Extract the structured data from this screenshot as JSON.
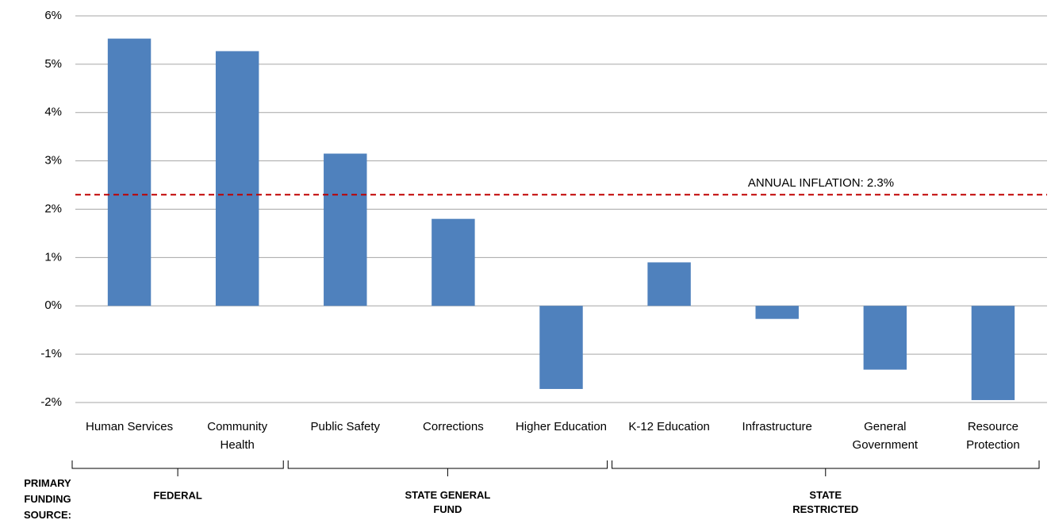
{
  "chart_data": {
    "type": "bar",
    "categories": [
      "Human Services",
      "Community\nHealth",
      "Public Safety",
      "Corrections",
      "Higher Education",
      "K-12 Education",
      "Infrastructure",
      "General\nGovernment",
      "Resource\nProtection"
    ],
    "values": [
      5.53,
      5.27,
      3.15,
      1.8,
      -1.72,
      0.9,
      -0.27,
      -1.32,
      -1.95
    ],
    "color": "#4f81bd",
    "ylim": [
      -2,
      6
    ],
    "yticks": [
      {
        "value": -2,
        "label": "-2%"
      },
      {
        "value": -1,
        "label": "-1%"
      },
      {
        "value": 0,
        "label": "0%"
      },
      {
        "value": 1,
        "label": "1%"
      },
      {
        "value": 2,
        "label": "2%"
      },
      {
        "value": 3,
        "label": "3%"
      },
      {
        "value": 4,
        "label": "4%"
      },
      {
        "value": 5,
        "label": "5%"
      },
      {
        "value": 6,
        "label": "6%"
      }
    ],
    "grid": true,
    "reference_line": {
      "value": 2.3,
      "label": "ANNUAL INFLATION: 2.3%",
      "color": "#c00000"
    },
    "group_title": "PRIMARY\nFUNDING\nSOURCE:",
    "groups": [
      "FEDERAL",
      "STATE GENERAL\nFUND",
      "STATE\nRESTRICTED"
    ]
  }
}
